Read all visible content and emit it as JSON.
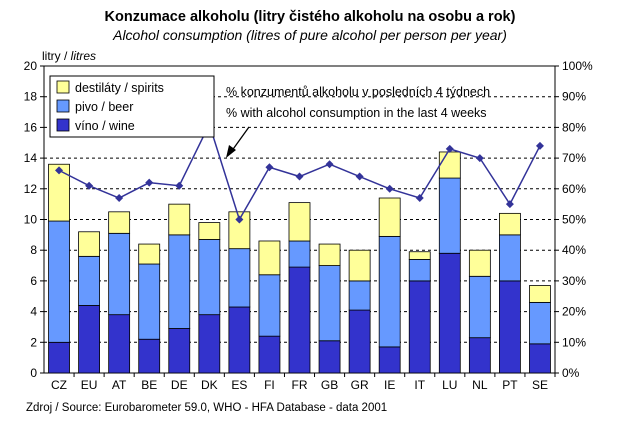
{
  "title": "Konzumace alkoholu (litry čistého alkoholu na osobu a rok)",
  "subtitle": "Alcohol consumption (litres of pure alcohol per person per year)",
  "y_unit_cz": "litry / ",
  "y_unit_en": "litres",
  "source": "Zdroj / Source: Eurobarometer 59.0, WHO - HFA Database - data 2001",
  "annotation": {
    "line1": "% konzumentů alkoholu v posledních 4 týdnech",
    "line2": "% with alcohol consumption in the last 4 weeks"
  },
  "colors": {
    "spirits": "#FFFF99",
    "beer": "#6699FF",
    "wine": "#3333CC",
    "line": "#333399"
  },
  "chart_data": {
    "type": "bar",
    "stacked": true,
    "categories": [
      "CZ",
      "EU",
      "AT",
      "BE",
      "DE",
      "DK",
      "ES",
      "FI",
      "FR",
      "GB",
      "GR",
      "IE",
      "IT",
      "LU",
      "NL",
      "PT",
      "SE"
    ],
    "series": [
      {
        "name": "víno / wine",
        "values": [
          2.0,
          4.4,
          3.8,
          2.2,
          2.9,
          3.8,
          4.3,
          2.4,
          6.9,
          2.1,
          4.1,
          1.7,
          6.0,
          7.8,
          2.3,
          6.0,
          1.9
        ]
      },
      {
        "name": "pivo / beer",
        "values": [
          7.9,
          3.2,
          5.3,
          4.9,
          6.1,
          4.9,
          3.8,
          4.0,
          1.7,
          4.9,
          1.9,
          7.2,
          1.4,
          4.9,
          4.0,
          3.0,
          2.7
        ]
      },
      {
        "name": "destiláty / spirits",
        "values": [
          3.7,
          1.6,
          1.4,
          1.3,
          2.0,
          1.1,
          2.4,
          2.2,
          2.5,
          1.4,
          2.0,
          2.5,
          0.5,
          1.7,
          1.7,
          1.4,
          1.1
        ]
      }
    ],
    "line_series": {
      "name": "% konzumentů alkoholu v posledních 4 týdnech / % with alcohol consumption in the last 4 weeks",
      "axis": "right",
      "values": [
        66,
        61,
        57,
        62,
        61,
        81,
        50,
        67,
        64,
        68,
        64,
        60,
        57,
        73,
        70,
        55,
        74
      ]
    },
    "ylim": [
      0,
      20
    ],
    "yticks": [
      "0",
      "2",
      "4",
      "6",
      "8",
      "10",
      "12",
      "14",
      "16",
      "18",
      "20"
    ],
    "y2lim": [
      0,
      100
    ],
    "y2ticks": [
      "0%",
      "10%",
      "20%",
      "30%",
      "40%",
      "50%",
      "60%",
      "70%",
      "80%",
      "90%",
      "100%"
    ],
    "grid": "dashed horizontal",
    "legend": "top-left"
  }
}
